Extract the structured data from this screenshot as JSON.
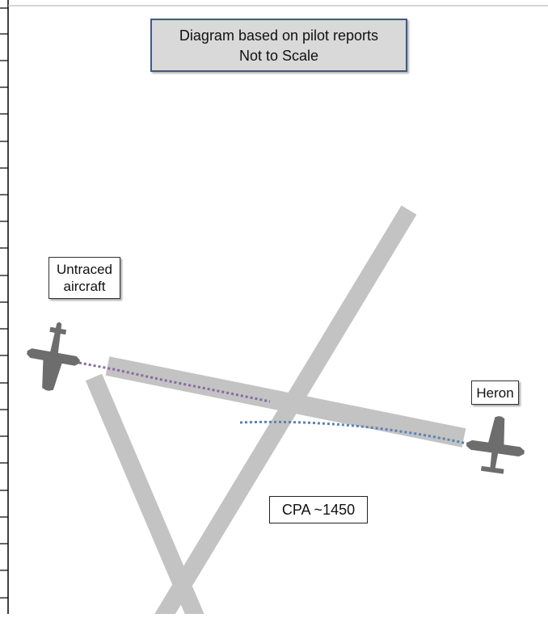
{
  "title": {
    "line1": "Diagram based on pilot reports",
    "line2": "Not to Scale"
  },
  "labels": {
    "untraced_line1": "Untraced",
    "untraced_line2": "aircraft",
    "heron": "Heron",
    "cpa": "CPA ~1450"
  },
  "colors": {
    "runway": "#c3c3c3",
    "aircraft": "#6d6d6d",
    "untraced_track": "#8a6aa0",
    "heron_track": "#5b82b5",
    "title_border": "#3e5a86",
    "title_fill": "#d9d9d9",
    "left_rule": "#000000"
  },
  "icons": [
    "aircraft-icon-untraced",
    "aircraft-icon-heron"
  ]
}
